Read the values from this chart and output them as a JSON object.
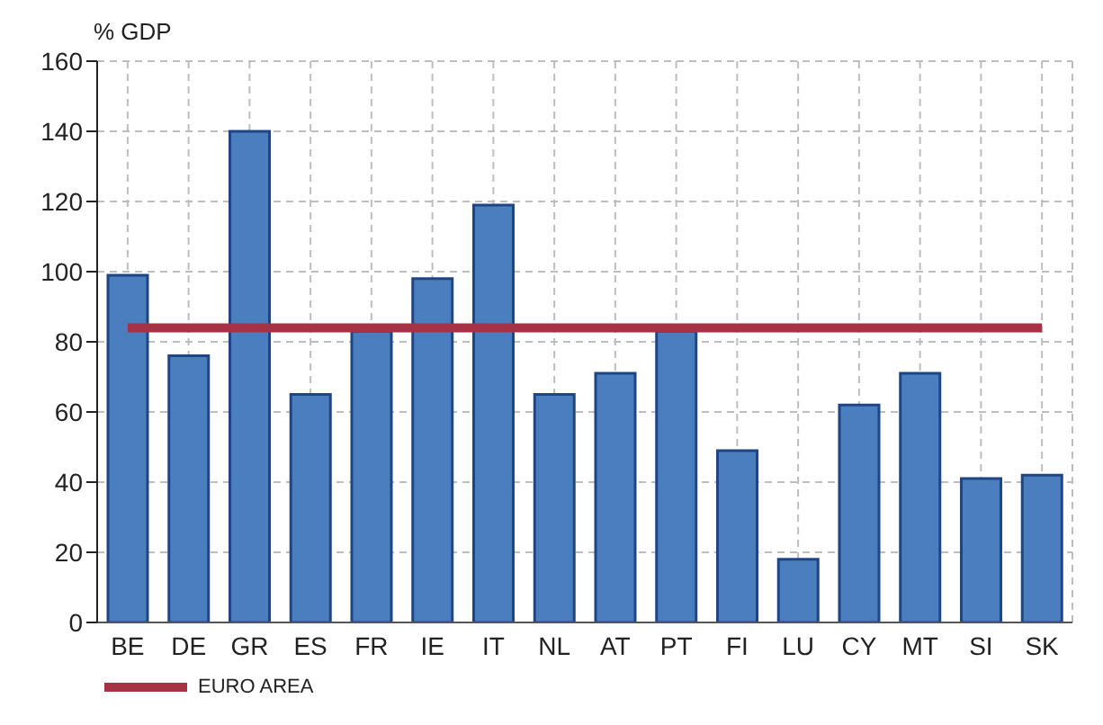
{
  "chart_data": {
    "type": "bar",
    "ylabel": "% GDP",
    "categories": [
      "BE",
      "DE",
      "GR",
      "ES",
      "FR",
      "IE",
      "IT",
      "NL",
      "AT",
      "PT",
      "FI",
      "LU",
      "CY",
      "MT",
      "SI",
      "SK"
    ],
    "series": [
      {
        "color": "#4a7ebf",
        "values": [
          99,
          76,
          140,
          65,
          83,
          98,
          119,
          65,
          71,
          83,
          49,
          18,
          62,
          71,
          41,
          42
        ]
      },
      {
        "type": "line",
        "name": "EURO AREA",
        "color": "#a63246",
        "values": [
          84,
          84,
          84,
          84,
          84,
          84,
          84,
          84,
          84,
          84,
          84,
          84,
          84,
          84,
          84,
          84
        ]
      }
    ],
    "ylim": [
      0,
      160
    ],
    "yticks": [
      0,
      20,
      40,
      60,
      80,
      100,
      120,
      140,
      160
    ],
    "grid": true,
    "legend": "bottom left",
    "marker": "none",
    "line_style": "solid"
  }
}
